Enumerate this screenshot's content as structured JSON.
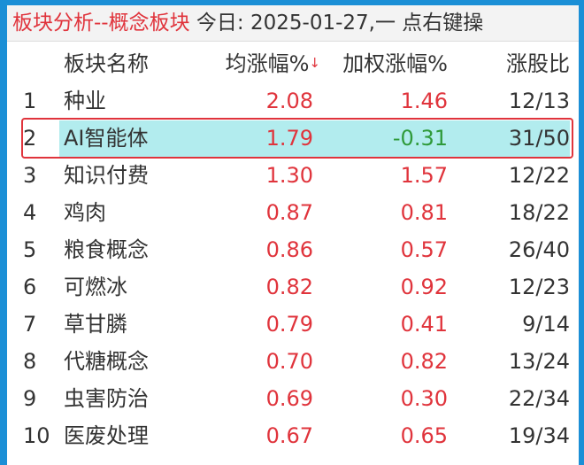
{
  "title": {
    "main": "板块分析--概念板块",
    "info": "今日: 2025-01-27,一  点右键操"
  },
  "headers": {
    "name": "板块名称",
    "avg": "均涨幅%",
    "sort_indicator": "↓",
    "weighted": "加权涨幅%",
    "ratio": "涨股比"
  },
  "rows": [
    {
      "idx": "1",
      "name": "种业",
      "avg": "2.08",
      "weighted": "1.46",
      "ratio": "12/13"
    },
    {
      "idx": "2",
      "name": "AI智能体",
      "avg": "1.79",
      "weighted": "-0.31",
      "ratio": "31/50"
    },
    {
      "idx": "3",
      "name": "知识付费",
      "avg": "1.30",
      "weighted": "1.57",
      "ratio": "12/22"
    },
    {
      "idx": "4",
      "name": "鸡肉",
      "avg": "0.87",
      "weighted": "0.81",
      "ratio": "18/22"
    },
    {
      "idx": "5",
      "name": "粮食概念",
      "avg": "0.86",
      "weighted": "0.57",
      "ratio": "26/40"
    },
    {
      "idx": "6",
      "name": "可燃冰",
      "avg": "0.82",
      "weighted": "0.92",
      "ratio": "12/23"
    },
    {
      "idx": "7",
      "name": "草甘膦",
      "avg": "0.79",
      "weighted": "0.41",
      "ratio": "9/14"
    },
    {
      "idx": "8",
      "name": "代糖概念",
      "avg": "0.70",
      "weighted": "0.82",
      "ratio": "13/24"
    },
    {
      "idx": "9",
      "name": "虫害防治",
      "avg": "0.69",
      "weighted": "0.30",
      "ratio": "22/34"
    },
    {
      "idx": "10",
      "name": "医废处理",
      "avg": "0.67",
      "weighted": "0.65",
      "ratio": "19/34"
    }
  ],
  "colors": {
    "up": "#e0343c",
    "down": "#2f9a3a",
    "highlight": "#b2ecee",
    "frame": "#1b8fd6"
  }
}
